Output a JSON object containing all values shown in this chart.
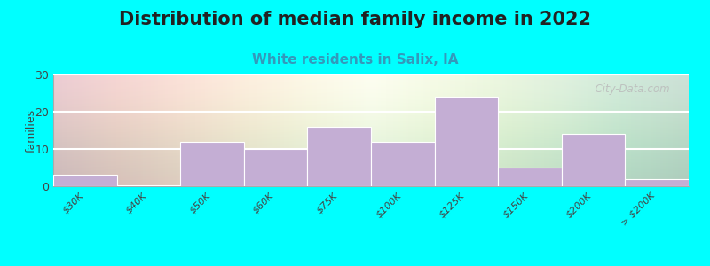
{
  "title": "Distribution of median family income in 2022",
  "subtitle": "White residents in Salix, IA",
  "ylabel": "families",
  "categories": [
    "$30K",
    "$40K",
    "$50K",
    "$60K",
    "$75K",
    "$100K",
    "$125K",
    "$150K",
    "$200K",
    "> $200K"
  ],
  "values": [
    3,
    0,
    12,
    10,
    16,
    12,
    24,
    5,
    14,
    2
  ],
  "bar_color": "#c4aed4",
  "bar_edge_color": "#d8ccdf",
  "background_color": "#00ffff",
  "ylim": [
    0,
    30
  ],
  "yticks": [
    0,
    10,
    20,
    30
  ],
  "title_fontsize": 15,
  "subtitle_fontsize": 11,
  "subtitle_color": "#3399bb",
  "watermark": "  City-Data.com",
  "watermark_icon": "○"
}
